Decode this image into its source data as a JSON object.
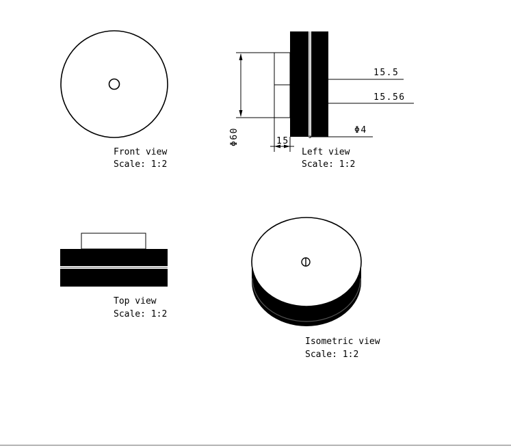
{
  "colors": {
    "ink": "#000000",
    "paper": "#ffffff",
    "border": "#9a9a9a"
  },
  "views": {
    "front": {
      "title": "Front view",
      "scale": "Scale:  1:2"
    },
    "left": {
      "title": "Left view",
      "scale": "Scale:  1:2"
    },
    "top": {
      "title": "Top view",
      "scale": "Scale:  1:2"
    },
    "isometric": {
      "title": "Isometric view",
      "scale": "Scale:  1:2"
    }
  },
  "dimensions": {
    "height_1": "15.5",
    "height_2": "15.56",
    "hole_diameter": "Φ4",
    "outer_diameter": "Φ60",
    "depth": "15"
  }
}
